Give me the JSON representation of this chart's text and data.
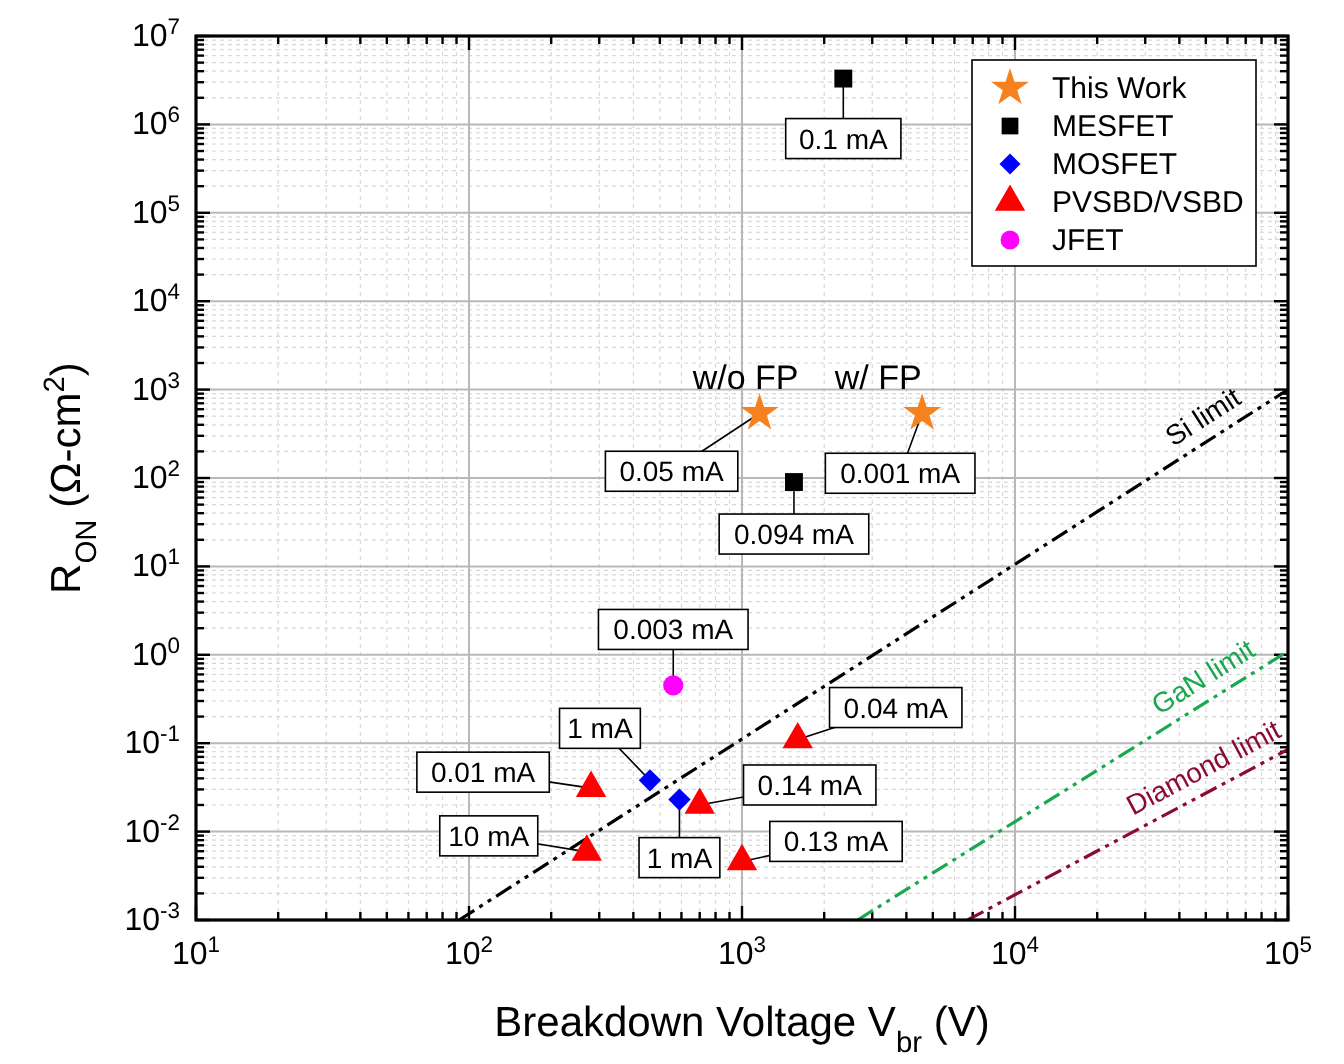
{
  "chart_data": {
    "type": "scatter",
    "xlabel": "Breakdown Voltage V$_{br}$ (V)",
    "ylabel": "R$_{ON}$ (Ω-cm$^{2}$)",
    "log": "xy",
    "grid": true,
    "legend": "top right",
    "xlim": [
      10,
      100000
    ],
    "ylim": [
      0.001,
      10000000
    ],
    "xticks": [
      {
        "value": 10,
        "label": "10$^{1}$"
      },
      {
        "value": 100,
        "label": "10$^{2}$"
      },
      {
        "value": 1000,
        "label": "10$^{3}$"
      },
      {
        "value": 10000,
        "label": "10$^{4}$"
      },
      {
        "value": 100000,
        "label": "10$^{5}$"
      }
    ],
    "yticks": [
      {
        "value": 0.001,
        "label": "10$^{-3}$"
      },
      {
        "value": 0.01,
        "label": "10$^{-2}$"
      },
      {
        "value": 0.1,
        "label": "10$^{-1}$"
      },
      {
        "value": 1,
        "label": "10$^{0}$"
      },
      {
        "value": 10,
        "label": "10$^{1}$"
      },
      {
        "value": 100,
        "label": "10$^{2}$"
      },
      {
        "value": 1000,
        "label": "10$^{3}$"
      },
      {
        "value": 10000,
        "label": "10$^{4}$"
      },
      {
        "value": 100000,
        "label": "10$^{5}$"
      },
      {
        "value": 1000000,
        "label": "10$^{6}$"
      },
      {
        "value": 10000000,
        "label": "10$^{7}$"
      }
    ],
    "series": [
      {
        "name": "This Work",
        "color": "#f5821f",
        "marker": "star",
        "x": [
          1160,
          4570
        ],
        "values": [
          540,
          540
        ]
      },
      {
        "name": "MESFET",
        "color": "#000000",
        "marker": "square",
        "x": [
          2350,
          1550
        ],
        "values": [
          3300000,
          90
        ]
      },
      {
        "name": "MOSFET",
        "color": "#0000ff",
        "marker": "diamond",
        "x": [
          460,
          590
        ],
        "values": [
          0.038,
          0.023
        ]
      },
      {
        "name": "PVSBD/VSBD",
        "color": "#ff0000",
        "marker": "triangle",
        "x": [
          280,
          270,
          700,
          1000,
          1600
        ],
        "values": [
          0.031,
          0.0059,
          0.02,
          0.0046,
          0.11
        ]
      },
      {
        "name": "JFET",
        "color": "#ff00ff",
        "marker": "circle",
        "x": [
          560
        ],
        "values": [
          0.45
        ]
      },
      {
        "name": "Si limit",
        "type": "line",
        "line_style": "dashed",
        "color": "#000000",
        "x": [
          92,
          100000
        ],
        "values": [
          0.001,
          1000
        ]
      },
      {
        "name": "GaN limit",
        "type": "line",
        "line_style": "dashed",
        "color": "#1aa84e",
        "x": [
          2650,
          100000
        ],
        "values": [
          0.001,
          1.1
        ]
      },
      {
        "name": "Diamond limit",
        "type": "line",
        "line_style": "dashed",
        "color": "#8b0a3a",
        "x": [
          6700,
          100000
        ],
        "values": [
          0.001,
          0.085
        ]
      }
    ],
    "annotations": [
      {
        "text": "0.1 mA",
        "x": 2350,
        "y": 3300000
      },
      {
        "text": "0.094 mA",
        "x": 1550,
        "y": 90
      },
      {
        "text": "0.05 mA",
        "x": 1160,
        "y": 540
      },
      {
        "text": "0.001 mA",
        "x": 4570,
        "y": 540
      },
      {
        "text": "w/o FP",
        "x": 1160,
        "y": 540
      },
      {
        "text": "w/ FP",
        "x": 4570,
        "y": 540
      },
      {
        "text": "0.003 mA",
        "x": 560,
        "y": 0.45
      },
      {
        "text": "1 mA",
        "x": 460,
        "y": 0.038
      },
      {
        "text": "1 mA",
        "x": 590,
        "y": 0.023
      },
      {
        "text": "0.01 mA",
        "x": 280,
        "y": 0.031
      },
      {
        "text": "10 mA",
        "x": 270,
        "y": 0.0059
      },
      {
        "text": "0.14 mA",
        "x": 700,
        "y": 0.02
      },
      {
        "text": "0.13 mA",
        "x": 1000,
        "y": 0.0046
      },
      {
        "text": "0.04 mA",
        "x": 1600,
        "y": 0.11
      }
    ]
  }
}
